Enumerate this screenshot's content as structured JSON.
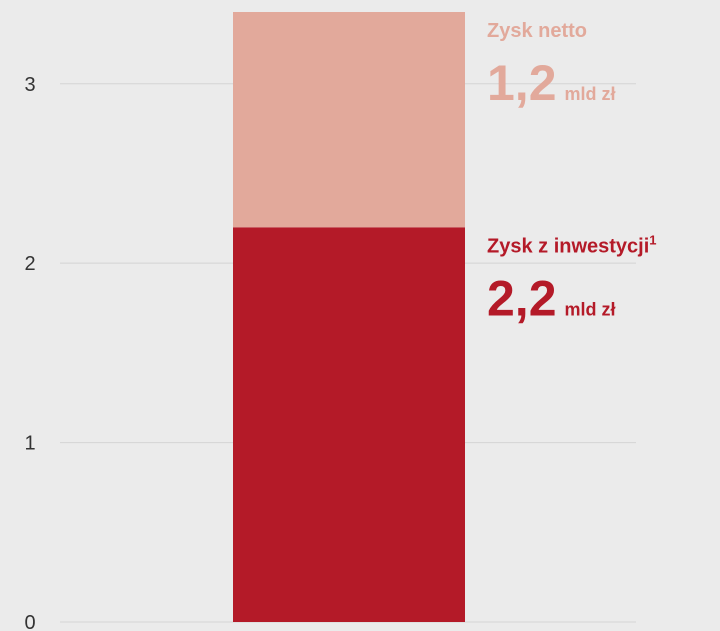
{
  "chart_data": {
    "type": "stacked_bar",
    "categories": [
      null
    ],
    "series": [
      {
        "name": "Zysk z inwestycji",
        "footnote": "1",
        "color": "#b41a28",
        "values": [
          2.2
        ],
        "value_labels": [
          "2,2"
        ]
      },
      {
        "name": "Zysk netto",
        "color": "#e2a99b",
        "values": [
          1.2
        ],
        "value_labels": [
          "1,2"
        ]
      }
    ],
    "unit": "mld zł",
    "ylim": [
      0,
      3.4
    ],
    "yticks": [
      0,
      1,
      2,
      3
    ],
    "grid": true
  }
}
